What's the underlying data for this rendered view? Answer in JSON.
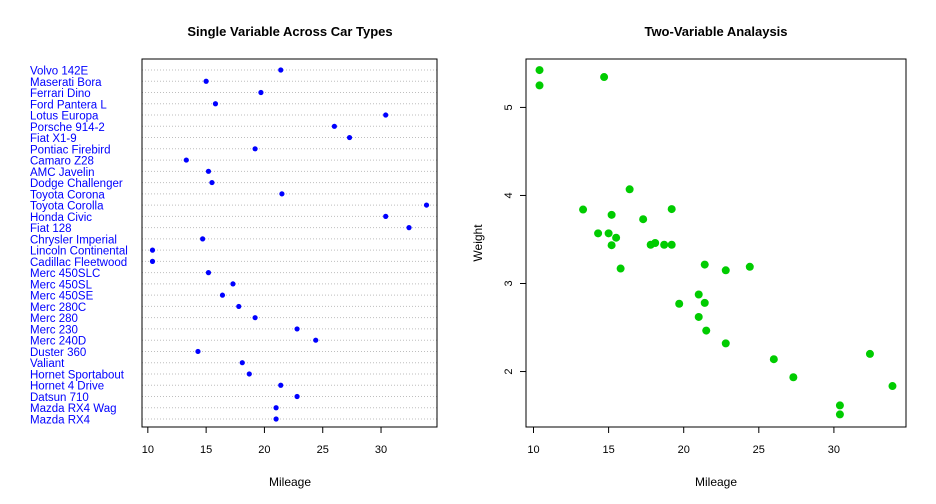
{
  "chart_data": [
    {
      "type": "scatter",
      "title": "Single Variable Across Car Types",
      "xlabel": "Mileage",
      "ylabel": "",
      "xlim": [
        9.5,
        34.8
      ],
      "xticks": [
        10,
        15,
        20,
        25,
        30
      ],
      "grid": "horizontal dotted",
      "label_color": "#0000ff",
      "point_color": "#0000ff",
      "categories": [
        "Mazda RX4",
        "Mazda RX4 Wag",
        "Datsun 710",
        "Hornet 4 Drive",
        "Hornet Sportabout",
        "Valiant",
        "Duster 360",
        "Merc 240D",
        "Merc 230",
        "Merc 280",
        "Merc 280C",
        "Merc 450SE",
        "Merc 450SL",
        "Merc 450SLC",
        "Cadillac Fleetwood",
        "Lincoln Continental",
        "Chrysler Imperial",
        "Fiat 128",
        "Honda Civic",
        "Toyota Corolla",
        "Toyota Corona",
        "Dodge Challenger",
        "AMC Javelin",
        "Camaro Z28",
        "Pontiac Firebird",
        "Fiat X1-9",
        "Porsche 914-2",
        "Lotus Europa",
        "Ford Pantera L",
        "Ferrari Dino",
        "Maserati Bora",
        "Volvo 142E"
      ],
      "values": [
        21.0,
        21.0,
        22.8,
        21.4,
        18.7,
        18.1,
        14.3,
        24.4,
        22.8,
        19.2,
        17.8,
        16.4,
        17.3,
        15.2,
        10.4,
        10.4,
        14.7,
        32.4,
        30.4,
        33.9,
        21.5,
        15.5,
        15.2,
        13.3,
        19.2,
        27.3,
        26.0,
        30.4,
        15.8,
        19.7,
        15.0,
        21.4
      ]
    },
    {
      "type": "scatter",
      "title": "Two-Variable Analaysis",
      "xlabel": "Mileage",
      "ylabel": "Weight",
      "xlim": [
        9.5,
        34.8
      ],
      "ylim": [
        1.37,
        5.55
      ],
      "xticks": [
        10,
        15,
        20,
        25,
        30
      ],
      "yticks": [
        2,
        3,
        4,
        5
      ],
      "point_color": "#00cc00",
      "x": [
        21.0,
        21.0,
        22.8,
        21.4,
        18.7,
        18.1,
        14.3,
        24.4,
        22.8,
        19.2,
        17.8,
        16.4,
        17.3,
        15.2,
        10.4,
        10.4,
        14.7,
        32.4,
        30.4,
        33.9,
        21.5,
        15.5,
        15.2,
        13.3,
        19.2,
        27.3,
        26.0,
        30.4,
        15.8,
        19.7,
        15.0,
        21.4
      ],
      "y": [
        2.62,
        2.875,
        2.32,
        3.215,
        3.44,
        3.46,
        3.57,
        3.19,
        3.15,
        3.44,
        3.44,
        4.07,
        3.73,
        3.78,
        5.25,
        5.424,
        5.345,
        2.2,
        1.615,
        1.835,
        2.465,
        3.52,
        3.435,
        3.84,
        3.845,
        1.935,
        2.14,
        1.513,
        3.17,
        2.77,
        3.57,
        2.78
      ]
    }
  ]
}
